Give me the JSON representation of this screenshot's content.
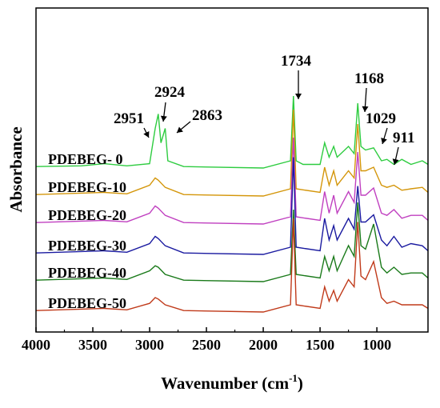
{
  "chart_data": {
    "type": "line",
    "title": "",
    "xlabel": "Wavenumber (cm",
    "xlabel_sup": "-1",
    "xlabel_close": ")",
    "ylabel": "Absorbance",
    "xlim": [
      4000,
      550
    ],
    "x_ticks": [
      "4000",
      "3500",
      "3000",
      "2500",
      "2000",
      "1500",
      "1000"
    ],
    "x_tick_values": [
      4000,
      3500,
      3000,
      2500,
      2000,
      1500,
      1000
    ],
    "x_reversed": true,
    "y_ticks": "none",
    "series": [
      {
        "name": "PDEBEG- 0",
        "color": "#2ecc40",
        "points": [
          [
            4000,
            0.02
          ],
          [
            3600,
            0.03
          ],
          [
            3400,
            0.06
          ],
          [
            3200,
            0.03
          ],
          [
            3000,
            0.06
          ],
          [
            2951,
            0.55
          ],
          [
            2924,
            0.75
          ],
          [
            2900,
            0.35
          ],
          [
            2863,
            0.55
          ],
          [
            2840,
            0.1
          ],
          [
            2700,
            0.02
          ],
          [
            2000,
            0.0
          ],
          [
            1760,
            0.1
          ],
          [
            1734,
            1.0
          ],
          [
            1710,
            0.1
          ],
          [
            1650,
            0.05
          ],
          [
            1500,
            0.05
          ],
          [
            1460,
            0.35
          ],
          [
            1420,
            0.15
          ],
          [
            1380,
            0.3
          ],
          [
            1350,
            0.15
          ],
          [
            1250,
            0.3
          ],
          [
            1200,
            0.2
          ],
          [
            1168,
            0.9
          ],
          [
            1140,
            0.3
          ],
          [
            1100,
            0.25
          ],
          [
            1029,
            0.28
          ],
          [
            960,
            0.1
          ],
          [
            911,
            0.12
          ],
          [
            850,
            0.05
          ],
          [
            780,
            0.12
          ],
          [
            700,
            0.05
          ],
          [
            600,
            0.1
          ],
          [
            550,
            0.05
          ]
        ]
      },
      {
        "name": "PDEBEG-10",
        "color": "#d4960a",
        "points": [
          [
            4000,
            0.02
          ],
          [
            3600,
            0.04
          ],
          [
            3400,
            0.05
          ],
          [
            3200,
            0.03
          ],
          [
            3000,
            0.15
          ],
          [
            2951,
            0.25
          ],
          [
            2924,
            0.22
          ],
          [
            2863,
            0.12
          ],
          [
            2700,
            0.02
          ],
          [
            2000,
            0.0
          ],
          [
            1760,
            0.1
          ],
          [
            1734,
            1.2
          ],
          [
            1710,
            0.1
          ],
          [
            1500,
            0.05
          ],
          [
            1460,
            0.4
          ],
          [
            1420,
            0.15
          ],
          [
            1380,
            0.35
          ],
          [
            1350,
            0.15
          ],
          [
            1250,
            0.35
          ],
          [
            1200,
            0.25
          ],
          [
            1168,
            1.0
          ],
          [
            1140,
            0.35
          ],
          [
            1100,
            0.35
          ],
          [
            1029,
            0.4
          ],
          [
            960,
            0.15
          ],
          [
            911,
            0.12
          ],
          [
            850,
            0.15
          ],
          [
            780,
            0.08
          ],
          [
            700,
            0.1
          ],
          [
            600,
            0.12
          ],
          [
            550,
            0.05
          ]
        ]
      },
      {
        "name": "PDEBEG-20",
        "color": "#c040c0",
        "points": [
          [
            4000,
            0.02
          ],
          [
            3600,
            0.04
          ],
          [
            3400,
            0.05
          ],
          [
            3200,
            0.03
          ],
          [
            3000,
            0.15
          ],
          [
            2951,
            0.25
          ],
          [
            2924,
            0.22
          ],
          [
            2863,
            0.12
          ],
          [
            2700,
            0.02
          ],
          [
            2000,
            0.0
          ],
          [
            1760,
            0.1
          ],
          [
            1734,
            1.2
          ],
          [
            1710,
            0.1
          ],
          [
            1500,
            0.05
          ],
          [
            1460,
            0.45
          ],
          [
            1420,
            0.15
          ],
          [
            1380,
            0.4
          ],
          [
            1350,
            0.15
          ],
          [
            1250,
            0.45
          ],
          [
            1200,
            0.3
          ],
          [
            1168,
            1.0
          ],
          [
            1140,
            0.4
          ],
          [
            1100,
            0.4
          ],
          [
            1029,
            0.5
          ],
          [
            960,
            0.15
          ],
          [
            911,
            0.12
          ],
          [
            850,
            0.2
          ],
          [
            780,
            0.08
          ],
          [
            700,
            0.12
          ],
          [
            600,
            0.12
          ],
          [
            550,
            0.05
          ]
        ]
      },
      {
        "name": "PDEBEG-30",
        "color": "#1a1aa0",
        "points": [
          [
            4000,
            0.02
          ],
          [
            3600,
            0.04
          ],
          [
            3400,
            0.05
          ],
          [
            3200,
            0.03
          ],
          [
            3000,
            0.15
          ],
          [
            2951,
            0.25
          ],
          [
            2924,
            0.22
          ],
          [
            2863,
            0.12
          ],
          [
            2700,
            0.02
          ],
          [
            2000,
            0.0
          ],
          [
            1760,
            0.1
          ],
          [
            1734,
            1.35
          ],
          [
            1710,
            0.1
          ],
          [
            1500,
            0.05
          ],
          [
            1460,
            0.5
          ],
          [
            1420,
            0.2
          ],
          [
            1380,
            0.4
          ],
          [
            1350,
            0.2
          ],
          [
            1250,
            0.5
          ],
          [
            1200,
            0.35
          ],
          [
            1168,
            0.95
          ],
          [
            1140,
            0.45
          ],
          [
            1100,
            0.45
          ],
          [
            1029,
            0.55
          ],
          [
            960,
            0.2
          ],
          [
            911,
            0.12
          ],
          [
            850,
            0.25
          ],
          [
            780,
            0.1
          ],
          [
            700,
            0.15
          ],
          [
            600,
            0.12
          ],
          [
            550,
            0.05
          ]
        ]
      },
      {
        "name": "PDEBEG-40",
        "color": "#1a7a1a",
        "points": [
          [
            4000,
            0.02
          ],
          [
            3600,
            0.04
          ],
          [
            3400,
            0.05
          ],
          [
            3200,
            0.03
          ],
          [
            3000,
            0.15
          ],
          [
            2951,
            0.22
          ],
          [
            2924,
            0.2
          ],
          [
            2863,
            0.1
          ],
          [
            2700,
            0.02
          ],
          [
            2000,
            0.0
          ],
          [
            1760,
            0.1
          ],
          [
            1734,
            1.0
          ],
          [
            1710,
            0.1
          ],
          [
            1500,
            0.05
          ],
          [
            1460,
            0.35
          ],
          [
            1420,
            0.15
          ],
          [
            1380,
            0.35
          ],
          [
            1350,
            0.15
          ],
          [
            1250,
            0.5
          ],
          [
            1200,
            0.35
          ],
          [
            1168,
            1.1
          ],
          [
            1140,
            0.5
          ],
          [
            1100,
            0.45
          ],
          [
            1029,
            0.8
          ],
          [
            960,
            0.2
          ],
          [
            911,
            0.12
          ],
          [
            850,
            0.2
          ],
          [
            780,
            0.1
          ],
          [
            700,
            0.12
          ],
          [
            600,
            0.12
          ],
          [
            550,
            0.05
          ]
        ]
      },
      {
        "name": "PDEBEG-50",
        "color": "#c03a1a",
        "points": [
          [
            4000,
            0.02
          ],
          [
            3600,
            0.04
          ],
          [
            3400,
            0.05
          ],
          [
            3200,
            0.03
          ],
          [
            3000,
            0.12
          ],
          [
            2951,
            0.2
          ],
          [
            2924,
            0.18
          ],
          [
            2863,
            0.1
          ],
          [
            2700,
            0.02
          ],
          [
            2000,
            0.0
          ],
          [
            1760,
            0.1
          ],
          [
            1734,
            1.3
          ],
          [
            1710,
            0.1
          ],
          [
            1500,
            0.05
          ],
          [
            1460,
            0.35
          ],
          [
            1420,
            0.15
          ],
          [
            1380,
            0.3
          ],
          [
            1350,
            0.15
          ],
          [
            1250,
            0.45
          ],
          [
            1200,
            0.35
          ],
          [
            1168,
            1.25
          ],
          [
            1140,
            0.5
          ],
          [
            1100,
            0.45
          ],
          [
            1029,
            0.7
          ],
          [
            960,
            0.2
          ],
          [
            911,
            0.12
          ],
          [
            850,
            0.15
          ],
          [
            780,
            0.1
          ],
          [
            700,
            0.1
          ],
          [
            600,
            0.1
          ],
          [
            550,
            0.05
          ]
        ]
      }
    ],
    "annotations": [
      {
        "text": "2951",
        "x": 2951
      },
      {
        "text": "2924",
        "x": 2924
      },
      {
        "text": "2863",
        "x": 2863
      },
      {
        "text": "1734",
        "x": 1734
      },
      {
        "text": "1168",
        "x": 1168
      },
      {
        "text": "1029",
        "x": 1029
      },
      {
        "text": "911",
        "x": 911
      }
    ],
    "grid": false,
    "legend": "inline labels on the left"
  }
}
